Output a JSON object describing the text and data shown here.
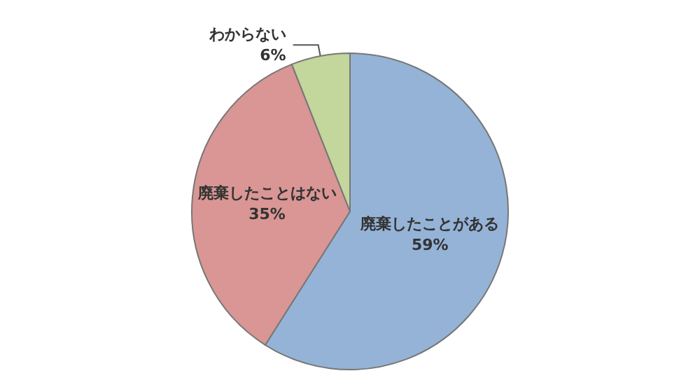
{
  "chart_data": {
    "type": "pie",
    "categories": [
      "廃棄したことがある",
      "廃棄したことはない",
      "わからない"
    ],
    "values": [
      59,
      35,
      6
    ],
    "value_labels": [
      "59%",
      "35%",
      "6%"
    ],
    "colors": [
      "#95b3d7",
      "#d99694",
      "#c3d69b"
    ],
    "legend": false
  }
}
